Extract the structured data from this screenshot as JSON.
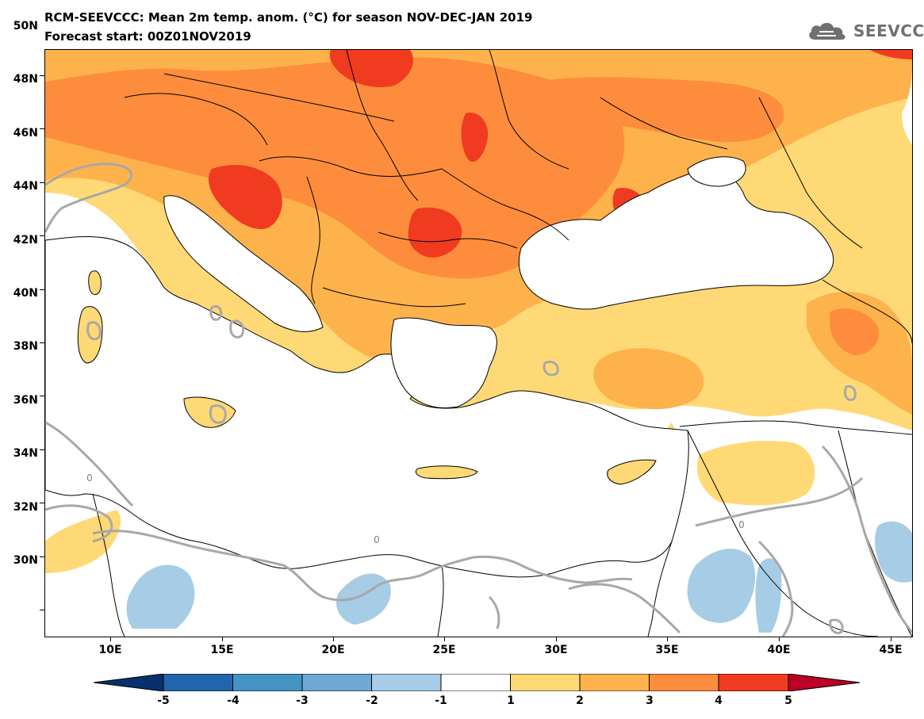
{
  "header": {
    "title": "RCM-SEEVCCC: Mean 2m temp. anom. (°C) for season NOV-DEC-JAN 2019",
    "subtitle": "Forecast start: 00Z01NOV2019",
    "logo_text": "SEEVCCC",
    "logo_icon": "cloud-logo-icon"
  },
  "map": {
    "lat_labels": [
      "50N",
      "48N",
      "46N",
      "44N",
      "42N",
      "40N",
      "38N",
      "36N",
      "34N",
      "32N",
      "30N"
    ],
    "lon_labels": [
      "10E",
      "15E",
      "20E",
      "25E",
      "30E",
      "35E",
      "40E",
      "45E"
    ],
    "contour_labels": [
      "0",
      "0",
      "0"
    ],
    "colors": {
      "land_neutral": "#ffffff",
      "ocean": "#ffffff",
      "contour": "#a8a8a8",
      "borders": "#000000"
    }
  },
  "legend": {
    "labels": [
      "-5",
      "-4",
      "-3",
      "-2",
      "-1",
      "1",
      "2",
      "3",
      "4",
      "5"
    ],
    "colors": [
      "#08306b",
      "#2166ac",
      "#4393c3",
      "#6fa8d6",
      "#a6cce6",
      "#ffffff",
      "#fed976",
      "#feb24c",
      "#fd8d3c",
      "#f03b20",
      "#bd0026"
    ]
  }
}
